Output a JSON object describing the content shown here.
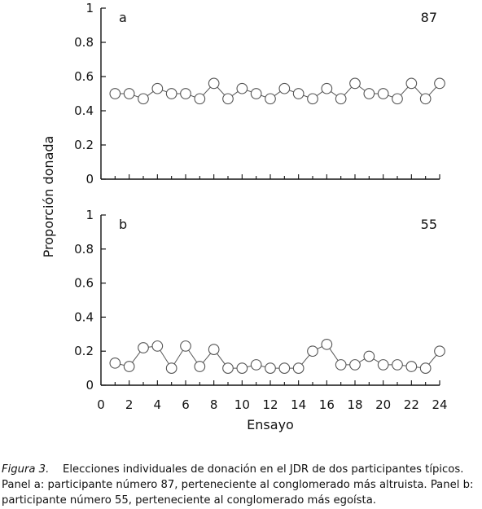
{
  "chart_data": {
    "type": "line",
    "ylabel": "Proporción donada",
    "xlabel": "Ensayo",
    "xlim": [
      0,
      24
    ],
    "ylim": [
      0,
      1
    ],
    "x_ticks": [
      0,
      2,
      4,
      6,
      8,
      10,
      12,
      14,
      16,
      18,
      20,
      22,
      24
    ],
    "y_ticks": [
      0,
      0.2,
      0.4,
      0.6,
      0.8,
      1
    ],
    "y_tick_labels": [
      "0",
      "0.2",
      "0.4",
      "0.6",
      "0.8",
      "1"
    ],
    "panels": [
      {
        "label": "a",
        "participant": "87",
        "x": [
          1,
          2,
          3,
          4,
          5,
          6,
          7,
          8,
          9,
          10,
          11,
          12,
          13,
          14,
          15,
          16,
          17,
          18,
          19,
          20,
          21,
          22,
          23,
          24
        ],
        "y": [
          0.5,
          0.5,
          0.47,
          0.53,
          0.5,
          0.5,
          0.47,
          0.56,
          0.47,
          0.53,
          0.5,
          0.47,
          0.53,
          0.5,
          0.47,
          0.53,
          0.47,
          0.56,
          0.5,
          0.5,
          0.47,
          0.56,
          0.47,
          0.56
        ]
      },
      {
        "label": "b",
        "participant": "55",
        "x": [
          1,
          2,
          3,
          4,
          5,
          6,
          7,
          8,
          9,
          10,
          11,
          12,
          13,
          14,
          15,
          16,
          17,
          18,
          19,
          20,
          21,
          22,
          23,
          24
        ],
        "y": [
          0.13,
          0.11,
          0.22,
          0.23,
          0.1,
          0.23,
          0.11,
          0.21,
          0.1,
          0.1,
          0.12,
          0.1,
          0.1,
          0.1,
          0.2,
          0.24,
          0.12,
          0.12,
          0.17,
          0.12,
          0.12,
          0.11,
          0.1,
          0.2
        ]
      }
    ],
    "marker": "open-circle",
    "line_color": "#555555",
    "marker_color": "#555555",
    "axis_color": "#111111"
  },
  "caption": {
    "figure_label": "Figura 3.",
    "text": "Elecciones individuales de donación en el JDR de dos participantes típicos. Panel a: participante número 87, perteneciente al conglomerado más altruista. Panel b: participante número 55, perteneciente al conglomerado más egoísta."
  }
}
